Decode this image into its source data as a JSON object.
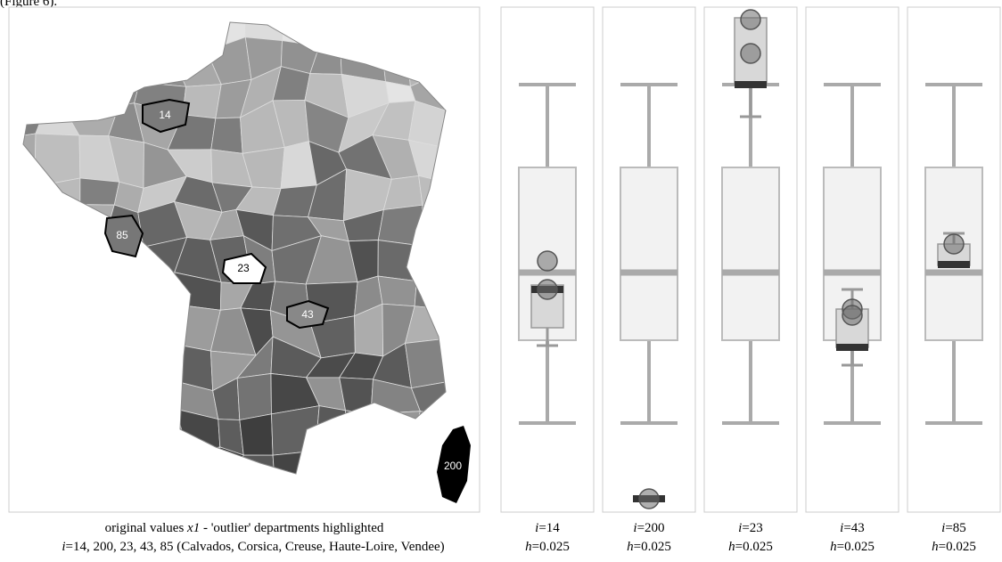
{
  "figure_ref": "(Figure 6).",
  "map": {
    "labels": [
      "14",
      "85",
      "23",
      "43",
      "200"
    ],
    "caption": {
      "line1": [
        "original values ",
        "x1",
        " - 'outlier' departments highlighted"
      ],
      "line2": [
        "i",
        "=14, 200, 23, 43, 85 (Calvados, Corsica, Creuse, Haute-Loire, Vendee)"
      ]
    }
  },
  "panels": [
    {
      "i": "i",
      "i_value": "=14",
      "h": "h",
      "h_value": "=0.025"
    },
    {
      "i": "i",
      "i_value": "=200",
      "h": "h",
      "h_value": "=0.025"
    },
    {
      "i": "i",
      "i_value": "=23",
      "h": "h",
      "h_value": "=0.025"
    },
    {
      "i": "i",
      "i_value": "=43",
      "h": "h",
      "h_value": "=0.025"
    },
    {
      "i": "i",
      "i_value": "=85",
      "h": "h",
      "h_value": "=0.025"
    }
  ]
}
